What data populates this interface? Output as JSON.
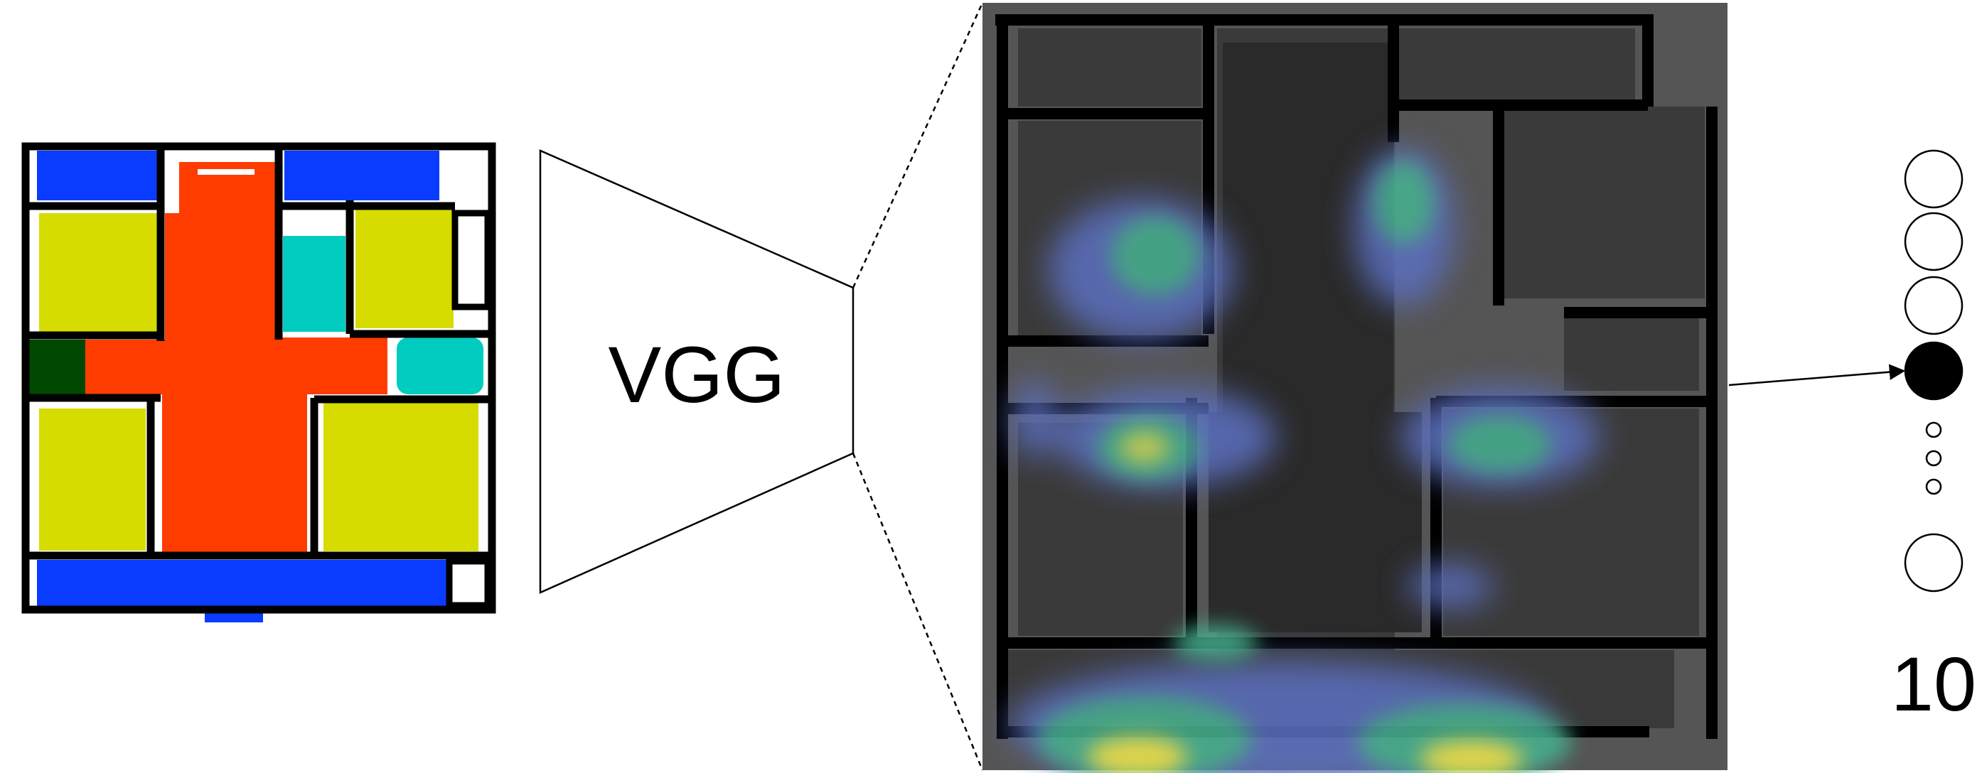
{
  "model": {
    "label": "VGG"
  },
  "output": {
    "label": "10"
  },
  "colors": {
    "wall": "#000000",
    "balcony": "#0a3cff",
    "corridor": "#ff3c00",
    "bedroom": "#d6dc00",
    "bathroom": "#00ccc0",
    "outdoor": "#004800",
    "heatmap_bg": "#555555",
    "heat_low": "#5b6ebd",
    "heat_mid": "#47b08f",
    "heat_high": "#f2e64b"
  }
}
